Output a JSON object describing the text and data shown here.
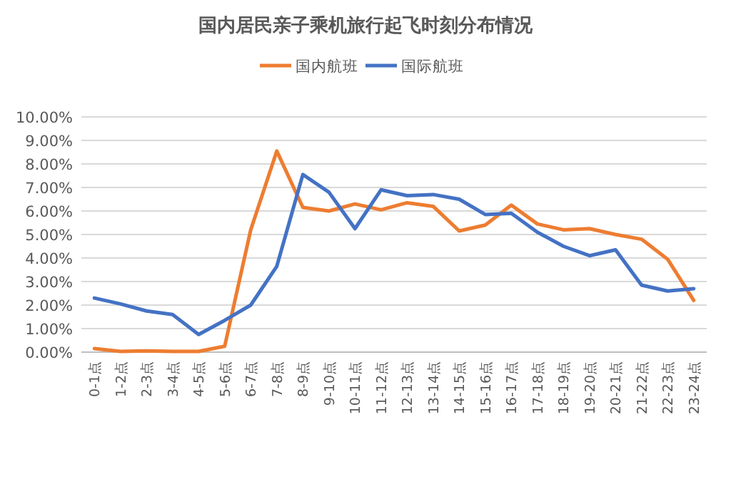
{
  "chart_data": {
    "type": "line",
    "title": "国内居民亲子乘机旅行起飞时刻分布情况",
    "categories": [
      "0-1点",
      "1-2点",
      "2-3点",
      "3-4点",
      "4-5点",
      "5-6点",
      "6-7点",
      "7-8点",
      "8-9点",
      "9-10点",
      "10-11点",
      "11-12点",
      "12-13点",
      "13-14点",
      "14-15点",
      "15-16点",
      "16-17点",
      "17-18点",
      "18-19点",
      "19-20点",
      "20-21点",
      "21-22点",
      "22-23点",
      "23-24点"
    ],
    "series": [
      {
        "name": "国内航班",
        "color": "#ed7d31",
        "values": [
          0.15,
          0.03,
          0.05,
          0.03,
          0.03,
          0.25,
          5.2,
          8.55,
          6.15,
          6.0,
          6.3,
          6.05,
          6.35,
          6.2,
          5.15,
          5.4,
          6.25,
          5.45,
          5.2,
          5.25,
          5.0,
          4.8,
          3.95,
          2.2
        ]
      },
      {
        "name": "国际航班",
        "color": "#4472c4",
        "values": [
          2.3,
          2.05,
          1.75,
          1.6,
          0.75,
          1.35,
          2.0,
          3.65,
          7.55,
          6.8,
          5.25,
          6.9,
          6.65,
          6.7,
          6.5,
          5.85,
          5.9,
          5.1,
          4.5,
          4.1,
          4.35,
          2.85,
          2.6,
          2.7
        ]
      }
    ],
    "ylim": [
      0,
      10
    ],
    "yticks": [
      {
        "value": 0,
        "label": "0.00%"
      },
      {
        "value": 1,
        "label": "1.00%"
      },
      {
        "value": 2,
        "label": "2.00%"
      },
      {
        "value": 3,
        "label": "3.00%"
      },
      {
        "value": 4,
        "label": "4.00%"
      },
      {
        "value": 5,
        "label": "5.00%"
      },
      {
        "value": 6,
        "label": "6.00%"
      },
      {
        "value": 7,
        "label": "7.00%"
      },
      {
        "value": 8,
        "label": "8.00%"
      },
      {
        "value": 9,
        "label": "9.00%"
      },
      {
        "value": 10,
        "label": "10.00%"
      }
    ],
    "grid": "y",
    "legend": "top",
    "marker": "none",
    "line_style": "solid"
  }
}
